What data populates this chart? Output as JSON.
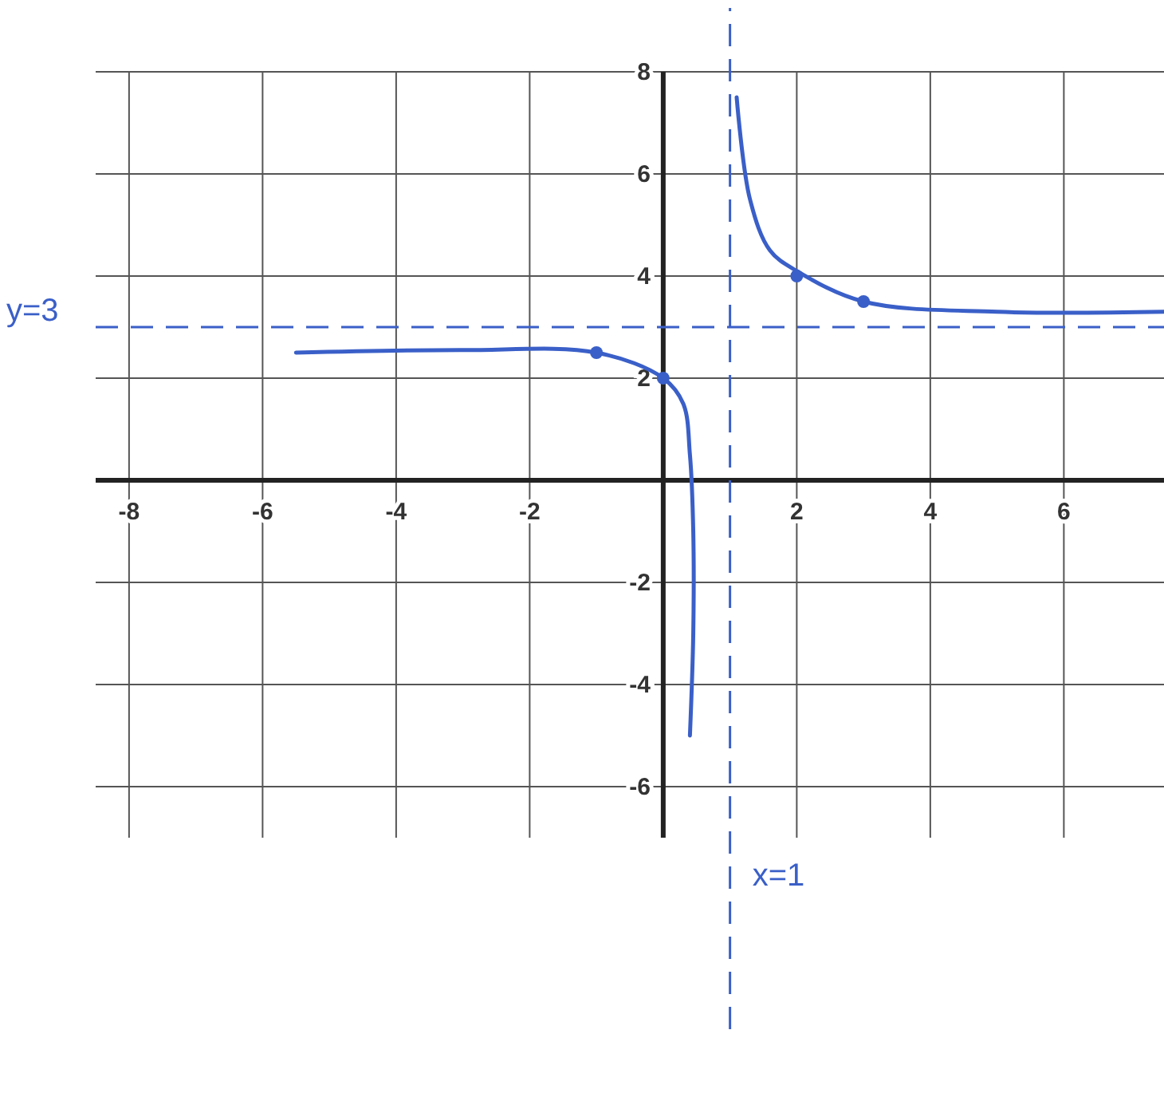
{
  "chart_data": {
    "type": "line",
    "xlim": [
      -8.5,
      7.5
    ],
    "ylim": [
      -7,
      8
    ],
    "xticks": [
      -8,
      -6,
      -4,
      -2,
      2,
      4,
      6
    ],
    "yticks": [
      -6,
      -4,
      -2,
      2,
      4,
      6,
      8
    ],
    "grid": true,
    "series": [
      {
        "color": "#3a5fc8",
        "x": [
          -5.5,
          -3,
          -1,
          0,
          0.3,
          0.4,
          0.45,
          0.45,
          0.4
        ],
        "values": [
          2.5,
          2.55,
          2.5,
          2,
          1.5,
          0.5,
          -1,
          -3,
          -5
        ],
        "marker": "none"
      },
      {
        "color": "#3a5fc8",
        "x": [
          1.1,
          1.3,
          1.6,
          2,
          3,
          5,
          7.5
        ],
        "values": [
          7.5,
          5.5,
          4.5,
          4.1,
          3.5,
          3.3,
          3.3
        ],
        "marker": "none"
      },
      {
        "type": "scatter",
        "color": "#3a5fc8",
        "x": [
          -1,
          0,
          2,
          3
        ],
        "values": [
          2.5,
          2,
          4,
          3.5
        ],
        "marker": "circle"
      }
    ],
    "ref_lines": [
      {
        "axis": "y",
        "value": 3,
        "label": "y=3",
        "color": "#3a5fc8",
        "line_style": "dashed"
      },
      {
        "axis": "x",
        "value": 1,
        "label": "x=1",
        "color": "#3a5fc8",
        "line_style": "dashed"
      }
    ]
  }
}
